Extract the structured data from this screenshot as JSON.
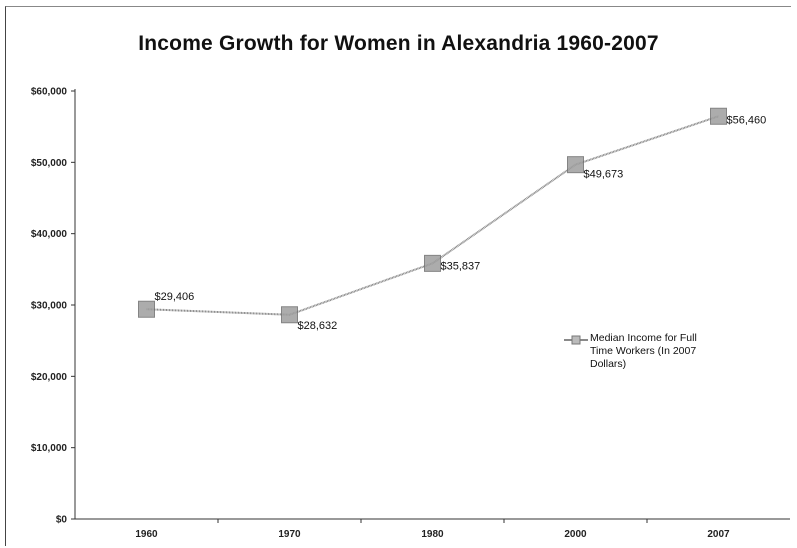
{
  "chart_data": {
    "type": "line",
    "title": "Income Growth for Women in Alexandria 1960-2007",
    "categories": [
      "1960",
      "1970",
      "1980",
      "2000",
      "2007"
    ],
    "series": [
      {
        "name": "Median Income for Full Time Workers (In 2007 Dollars)",
        "values": [
          29406,
          28632,
          35837,
          49673,
          56460
        ],
        "labels": [
          "$29,406",
          "$28,632",
          "$35,837",
          "$49,673",
          "$56,460"
        ]
      }
    ],
    "ylim": [
      0,
      60000
    ],
    "yticks": [
      "$0",
      "$10,000",
      "$20,000",
      "$30,000",
      "$40,000",
      "$50,000",
      "$60,000"
    ],
    "grid": false,
    "legend": "right",
    "colors": {
      "line": "#8a8a8a",
      "marker": "#9e9e9e",
      "axis": "#333333"
    }
  }
}
